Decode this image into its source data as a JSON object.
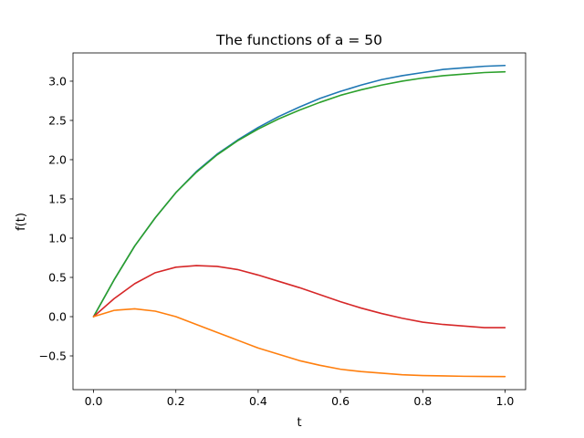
{
  "chart_data": {
    "type": "line",
    "title": "The functions of a = 50",
    "xlabel": "t",
    "ylabel": "f(t)",
    "xlim": [
      -0.05,
      1.05
    ],
    "ylim": [
      -0.93,
      3.36
    ],
    "grid": false,
    "legend": "none",
    "xticks": [
      0.0,
      0.2,
      0.4,
      0.6,
      0.8,
      1.0
    ],
    "xtick_labels": [
      "0.0",
      "0.2",
      "0.4",
      "0.6",
      "0.8",
      "1.0"
    ],
    "yticks": [
      -0.5,
      0.0,
      0.5,
      1.0,
      1.5,
      2.0,
      2.5,
      3.0
    ],
    "ytick_labels": [
      "−0.5",
      "0.0",
      "0.5",
      "1.0",
      "1.5",
      "2.0",
      "2.5",
      "3.0"
    ],
    "series": [
      {
        "color": "#1f77b4",
        "x": [
          0,
          0.05,
          0.1,
          0.15,
          0.2,
          0.25,
          0.3,
          0.35,
          0.4,
          0.45,
          0.5,
          0.55,
          0.6,
          0.65,
          0.7,
          0.75,
          0.8,
          0.85,
          0.9,
          0.95,
          1.0
        ],
        "y": [
          0.0,
          0.47,
          0.9,
          1.26,
          1.58,
          1.85,
          2.07,
          2.25,
          2.41,
          2.55,
          2.67,
          2.78,
          2.87,
          2.95,
          3.02,
          3.07,
          3.11,
          3.15,
          3.17,
          3.19,
          3.2
        ]
      },
      {
        "color": "#2ca02c",
        "x": [
          0,
          0.05,
          0.1,
          0.15,
          0.2,
          0.25,
          0.3,
          0.35,
          0.4,
          0.45,
          0.5,
          0.55,
          0.6,
          0.65,
          0.7,
          0.75,
          0.8,
          0.85,
          0.9,
          0.95,
          1.0
        ],
        "y": [
          0.0,
          0.47,
          0.9,
          1.26,
          1.58,
          1.84,
          2.06,
          2.24,
          2.39,
          2.52,
          2.63,
          2.73,
          2.82,
          2.89,
          2.95,
          3.0,
          3.04,
          3.07,
          3.09,
          3.11,
          3.12
        ]
      },
      {
        "color": "#d62728",
        "x": [
          0,
          0.05,
          0.1,
          0.15,
          0.2,
          0.25,
          0.3,
          0.35,
          0.4,
          0.45,
          0.5,
          0.55,
          0.6,
          0.65,
          0.7,
          0.75,
          0.8,
          0.85,
          0.9,
          0.95,
          1.0
        ],
        "y": [
          0.0,
          0.23,
          0.42,
          0.56,
          0.63,
          0.65,
          0.64,
          0.6,
          0.53,
          0.45,
          0.37,
          0.28,
          0.19,
          0.11,
          0.04,
          -0.02,
          -0.07,
          -0.1,
          -0.12,
          -0.14,
          -0.14
        ]
      },
      {
        "color": "#ff7f0e",
        "x": [
          0,
          0.05,
          0.1,
          0.15,
          0.2,
          0.25,
          0.3,
          0.35,
          0.4,
          0.45,
          0.5,
          0.55,
          0.6,
          0.65,
          0.7,
          0.75,
          0.8,
          0.85,
          0.9,
          0.95,
          1.0
        ],
        "y": [
          0.0,
          0.08,
          0.1,
          0.07,
          0.0,
          -0.1,
          -0.2,
          -0.3,
          -0.4,
          -0.48,
          -0.56,
          -0.62,
          -0.67,
          -0.7,
          -0.72,
          -0.74,
          -0.75,
          -0.755,
          -0.76,
          -0.762,
          -0.763
        ]
      }
    ]
  }
}
